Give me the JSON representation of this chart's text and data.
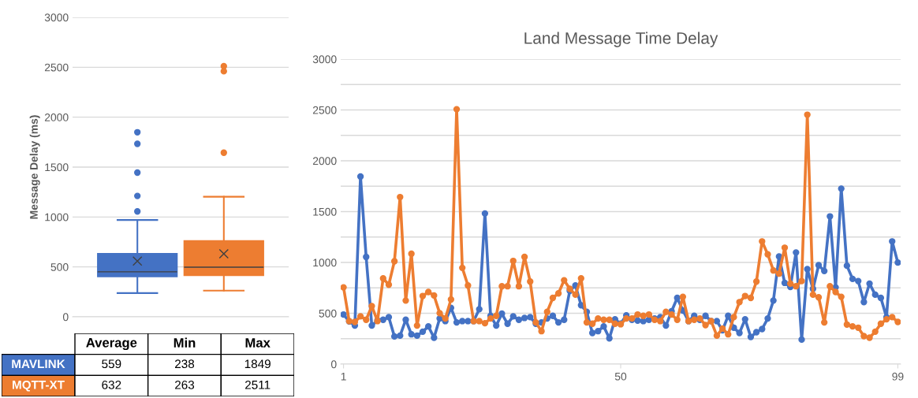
{
  "chart_data": [
    {
      "type": "box",
      "ylabel": "Message Delay (ms)",
      "categories": [
        null
      ],
      "ylim": [
        0,
        3000
      ],
      "yticks": [
        0,
        500,
        1000,
        1500,
        2000,
        2500,
        3000
      ],
      "grid": "y",
      "series": [
        {
          "name": "MAVLINK",
          "color": "#4472c4",
          "boxes": [
            {
              "low": 238,
              "q1": 403,
              "median": 451,
              "q3": 634,
              "high": 970,
              "mean": 559,
              "outliers": [
                1056,
                1211,
                1445,
                1733,
                1849
              ]
            }
          ]
        },
        {
          "name": "MQTT-XT",
          "color": "#ed7d31",
          "boxes": [
            {
              "low": 263,
              "q1": 414,
              "median": 497,
              "q3": 763,
              "high": 1203,
              "mean": 632,
              "outliers": [
                1644,
                2460,
                2511
              ]
            }
          ]
        }
      ],
      "annotations": [
        "Average",
        "Min",
        "Max",
        "559",
        "238",
        "1849",
        "632",
        "263",
        "2511"
      ]
    },
    {
      "type": "line",
      "title": "Land Message Time Delay",
      "marker": "circle",
      "line_style": "solid",
      "grid": "y",
      "x": [
        1,
        2,
        3,
        4,
        5,
        6,
        7,
        8,
        9,
        10,
        11,
        12,
        13,
        14,
        15,
        16,
        17,
        18,
        19,
        20,
        21,
        22,
        23,
        24,
        25,
        26,
        27,
        28,
        29,
        30,
        31,
        32,
        33,
        34,
        35,
        36,
        37,
        38,
        39,
        40,
        41,
        42,
        43,
        44,
        45,
        46,
        47,
        48,
        49,
        50,
        51,
        52,
        53,
        54,
        55,
        56,
        57,
        58,
        59,
        60,
        61,
        62,
        63,
        64,
        65,
        66,
        67,
        68,
        69,
        70,
        71,
        72,
        73,
        74,
        75,
        76,
        77,
        78,
        79,
        80,
        81,
        82,
        83,
        84,
        85,
        86,
        87,
        88,
        89,
        90,
        91,
        92,
        93,
        94,
        95,
        96,
        97,
        98,
        99
      ],
      "xlim": [
        0.5,
        99.5
      ],
      "xticks": [
        1,
        50,
        99
      ],
      "ylim": [
        0,
        3000
      ],
      "yticks": [
        0,
        {
          "value": 250,
          "label": null
        },
        500,
        {
          "value": 750,
          "label": null
        },
        1000,
        {
          "value": 1250,
          "label": null
        },
        1500,
        {
          "value": 1750,
          "label": null
        },
        2000,
        {
          "value": 2250,
          "label": null
        },
        2500,
        {
          "value": 2750,
          "label": null
        },
        3000
      ],
      "series": [
        {
          "color": "#4472c4",
          "values": [
            488,
            420,
            379,
            1845,
            1054,
            379,
            430,
            436,
            462,
            272,
            280,
            436,
            293,
            280,
            319,
            371,
            260,
            449,
            423,
            553,
            410,
            423,
            423,
            423,
            540,
            1482,
            475,
            379,
            496,
            397,
            470,
            436,
            454,
            462,
            397,
            410,
            449,
            475,
            410,
            436,
            721,
            773,
            579,
            514,
            306,
            324,
            371,
            254,
            441,
            397,
            480,
            436,
            428,
            423,
            436,
            449,
            462,
            379,
            520,
            651,
            527,
            423,
            475,
            436,
            475,
            423,
            423,
            332,
            475,
            358,
            306,
            441,
            267,
            314,
            345,
            449,
            625,
            1059,
            799,
            760,
            1098,
            241,
            934,
            740,
            973,
            916,
            1453,
            755,
            1726,
            968,
            838,
            817,
            610,
            792,
            683,
            651,
            462,
            1207,
            999
          ]
        },
        {
          "color": "#ed7d31",
          "values": [
            755,
            423,
            415,
            470,
            436,
            571,
            423,
            843,
            781,
            1012,
            1643,
            625,
            1085,
            379,
            670,
            709,
            675,
            501,
            449,
            636,
            2507,
            947,
            773,
            423,
            423,
            402,
            449,
            475,
            766,
            766,
            1015,
            766,
            1054,
            812,
            410,
            324,
            514,
            651,
            696,
            825,
            740,
            683,
            843,
            410,
            397,
            449,
            436,
            436,
            397,
            392,
            449,
            449,
            488,
            475,
            488,
            436,
            423,
            514,
            488,
            436,
            662,
            423,
            436,
            449,
            384,
            423,
            280,
            350,
            293,
            462,
            610,
            670,
            651,
            812,
            1207,
            1080,
            921,
            890,
            1145,
            792,
            766,
            817,
            2453,
            683,
            657,
            410,
            766,
            709,
            662,
            389,
            371,
            358,
            275,
            260,
            319,
            397,
            441,
            462,
            415
          ]
        }
      ]
    }
  ]
}
